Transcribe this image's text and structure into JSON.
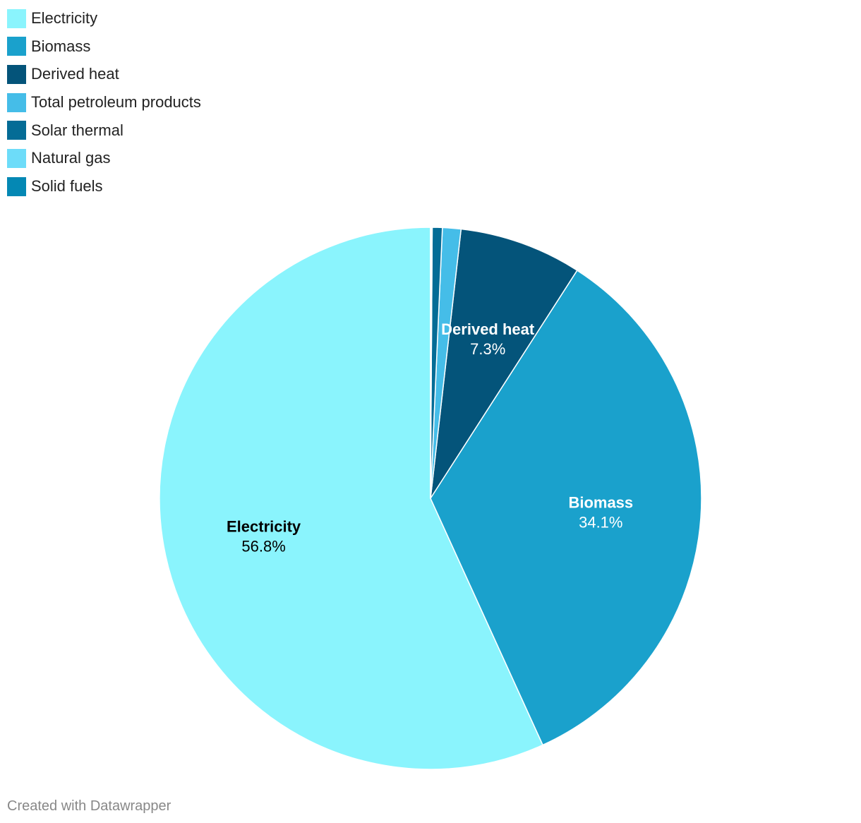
{
  "chart_data": {
    "type": "pie",
    "series": [
      {
        "name": "Electricity",
        "value": 56.8,
        "color": "#8af4fd",
        "label": "Electricity",
        "value_label": "56.8%",
        "label_color": "#000000"
      },
      {
        "name": "Biomass",
        "value": 34.1,
        "color": "#1aa1cc",
        "label": "Biomass",
        "value_label": "34.1%",
        "label_color": "#ffffff"
      },
      {
        "name": "Derived heat",
        "value": 7.3,
        "color": "#04547a",
        "label": "Derived heat",
        "value_label": "7.3%",
        "label_color": "#ffffff"
      },
      {
        "name": "Total petroleum products",
        "value": 1.1,
        "color": "#45bde8",
        "label": "",
        "value_label": "",
        "label_color": "#ffffff"
      },
      {
        "name": "Solar thermal",
        "value": 0.6,
        "color": "#046c96",
        "label": "",
        "value_label": "",
        "label_color": "#ffffff"
      },
      {
        "name": "Natural gas",
        "value": 0.05,
        "color": "#6ddcf9",
        "label": "",
        "value_label": "",
        "label_color": "#ffffff"
      },
      {
        "name": "Solid fuels",
        "value": 0.05,
        "color": "#0488b4",
        "label": "",
        "value_label": "",
        "label_color": "#ffffff"
      }
    ],
    "legend_position": "top-left",
    "direction": "counter-clockwise",
    "start_angle": "top"
  },
  "footer": {
    "credit": "Created with Datawrapper"
  }
}
